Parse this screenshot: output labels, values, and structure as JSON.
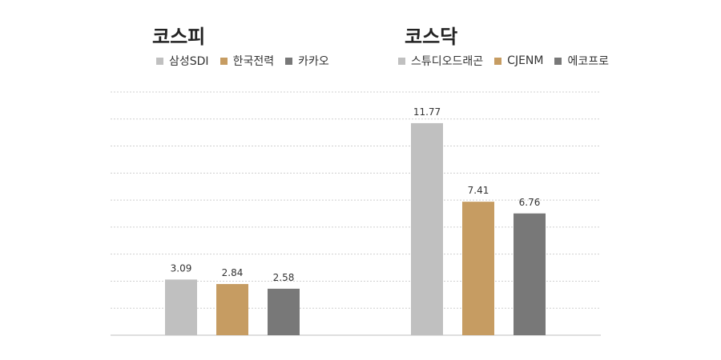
{
  "chart_data": [
    {
      "type": "bar",
      "title": "코스피",
      "categories": [
        "삼성SDI",
        "한국전력",
        "카카오"
      ],
      "values": [
        3.09,
        2.84,
        2.58
      ],
      "colors": [
        "#c0c0c0",
        "#c69c62",
        "#787878"
      ],
      "ylim": [
        0,
        13.5
      ],
      "grid": true,
      "legend_position": "top"
    },
    {
      "type": "bar",
      "title": "코스닥",
      "categories": [
        "스튜디오드래곤",
        "CJENM",
        "에코프로"
      ],
      "values": [
        11.77,
        7.41,
        6.76
      ],
      "colors": [
        "#c0c0c0",
        "#c69c62",
        "#787878"
      ],
      "ylim": [
        0,
        13.5
      ],
      "grid": true,
      "legend_position": "top"
    }
  ]
}
